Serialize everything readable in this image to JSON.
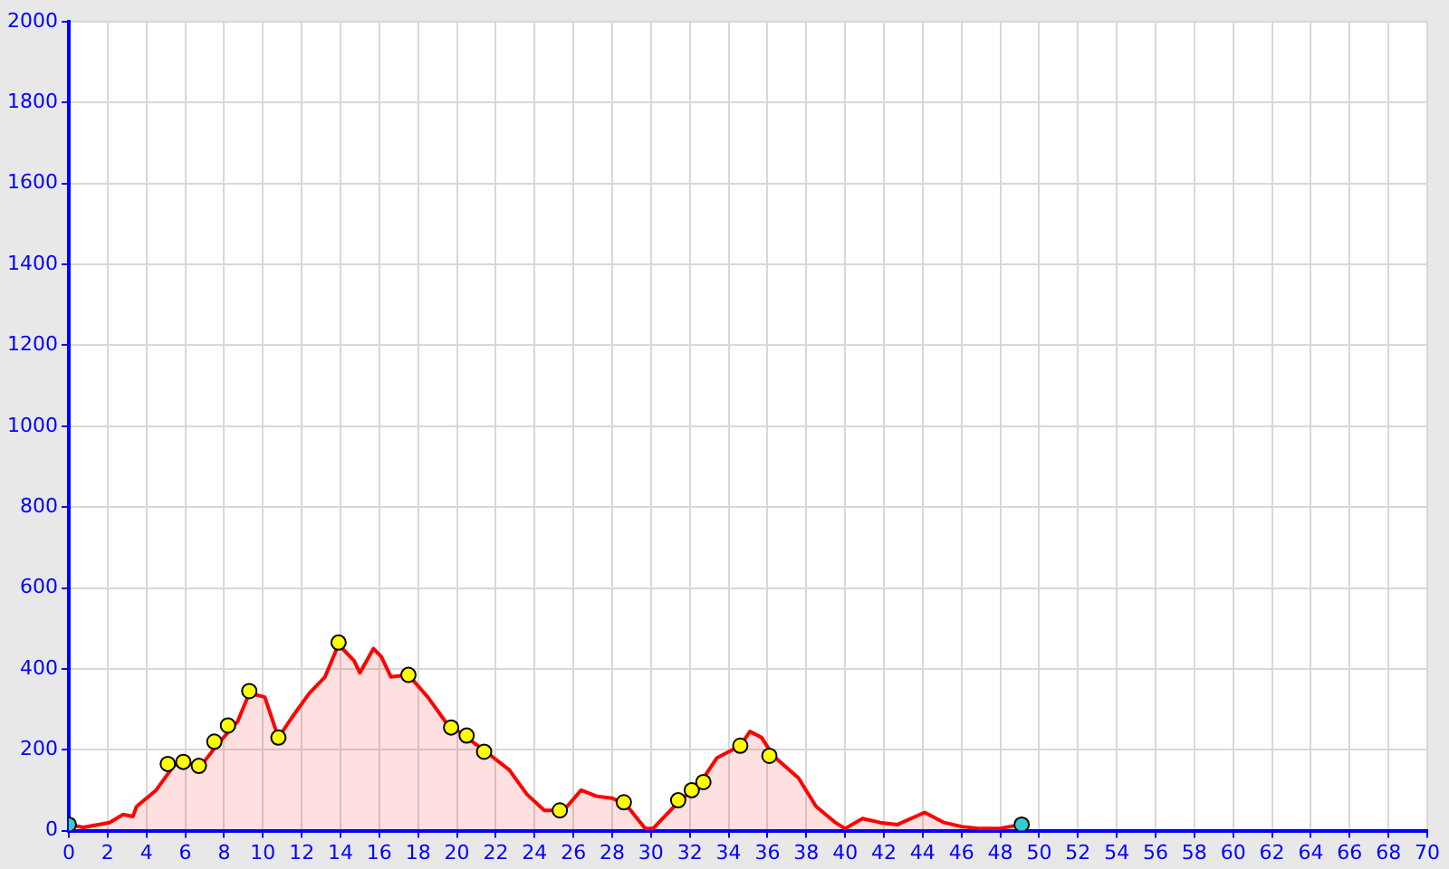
{
  "chart_data": {
    "type": "area",
    "xlim": [
      0,
      70
    ],
    "xticks": [
      0,
      2,
      4,
      6,
      8,
      10,
      12,
      14,
      16,
      18,
      20,
      22,
      24,
      26,
      28,
      30,
      32,
      34,
      36,
      38,
      40,
      42,
      44,
      46,
      48,
      50,
      52,
      54,
      56,
      58,
      60,
      62,
      64,
      66,
      68,
      70
    ],
    "ylim": [
      0,
      2000
    ],
    "yticks": [
      0,
      200,
      400,
      600,
      800,
      1000,
      1200,
      1400,
      1600,
      1800,
      2000
    ],
    "grid": true,
    "legend": false,
    "series": [
      {
        "color": "#ff0000",
        "x": [
          0,
          0.75,
          2.1,
          2.8,
          3.3,
          3.5,
          4.5,
          5.4,
          5.9,
          6.8,
          7.7,
          8.7,
          9.3,
          10.1,
          10.8,
          11.5,
          12.4,
          13.2,
          13.9,
          14.7,
          15,
          15.7,
          16.1,
          16.6,
          17.5,
          18.5,
          19.4,
          20.5,
          21.5,
          22.7,
          23.6,
          24.5,
          25.5,
          26.4,
          27.2,
          28,
          28.7,
          29.7,
          30.1,
          31.5,
          32.5,
          33.4,
          34.6,
          35.1,
          35.7,
          36.3,
          37.6,
          38.5,
          39.5,
          40,
          40.9,
          41.8,
          42.7,
          44.1,
          45.1,
          46,
          47,
          47.9,
          49.1
        ],
        "values": [
          15,
          8,
          20,
          40,
          35,
          60,
          100,
          160,
          170,
          160,
          215,
          270,
          340,
          330,
          230,
          280,
          340,
          380,
          460,
          420,
          390,
          450,
          430,
          380,
          385,
          330,
          270,
          230,
          195,
          150,
          90,
          50,
          50,
          100,
          85,
          80,
          65,
          5,
          5,
          75,
          115,
          180,
          210,
          245,
          230,
          185,
          130,
          60,
          20,
          5,
          30,
          20,
          15,
          45,
          20,
          10,
          5,
          5,
          15
        ]
      },
      {
        "type": "scatter",
        "marker": "circle",
        "x": [
          0,
          5.1,
          5.9,
          6.7,
          7.5,
          8.2,
          9.3,
          10.8,
          13.9,
          17.5,
          19.7,
          20.5,
          21.4,
          25.3,
          28.6,
          31.4,
          32.1,
          32.7,
          34.6,
          36.1,
          49.1
        ],
        "values": [
          15,
          165,
          170,
          160,
          220,
          260,
          345,
          230,
          465,
          385,
          255,
          235,
          195,
          50,
          70,
          75,
          100,
          120,
          210,
          185,
          15
        ],
        "colors": [
          "#33cccc",
          "#ffff00",
          "#ffff00",
          "#ffff00",
          "#ffff00",
          "#ffff00",
          "#ffff00",
          "#ffff00",
          "#ffff00",
          "#ffff00",
          "#ffff00",
          "#ffff00",
          "#ffff00",
          "#ffff00",
          "#ffff00",
          "#ffff00",
          "#ffff00",
          "#ffff00",
          "#ffff00",
          "#ffff00",
          "#33cccc"
        ]
      }
    ]
  }
}
